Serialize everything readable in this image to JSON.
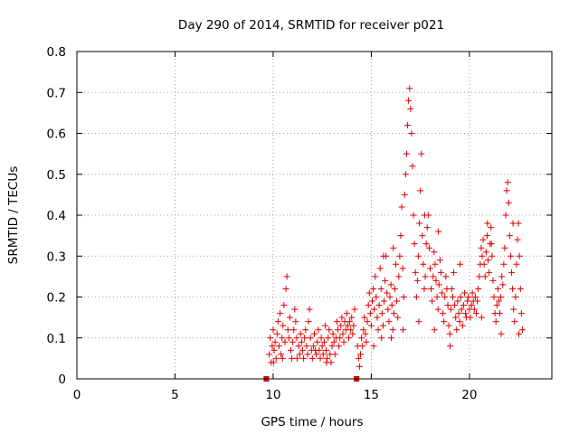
{
  "chart_data": {
    "type": "scatter",
    "title": "Day 290 of 2014, SRMTID for receiver p021",
    "xlabel": "GPS time / hours",
    "ylabel": "SRMTID / TECUs",
    "xlim": [
      0,
      24.2
    ],
    "ylim": [
      0,
      0.8
    ],
    "xticks": [
      0,
      5,
      10,
      15,
      20
    ],
    "xtick_labels": [
      "0",
      "5",
      "10",
      "15",
      "20"
    ],
    "yticks": [
      0,
      0.1,
      0.2,
      0.3,
      0.4,
      0.5,
      0.6,
      0.7,
      0.8
    ],
    "ytick_labels": [
      "0",
      "0.1",
      "0.2",
      "0.3",
      "0.4",
      "0.5",
      "0.6",
      "0.7",
      "0.8"
    ],
    "grid": true,
    "marker": "+",
    "color": "#e00000",
    "gap_markers": [
      {
        "x": 9.65,
        "y": 0
      },
      {
        "x": 14.25,
        "y": 0
      }
    ],
    "series": [
      {
        "name": "SRMTID",
        "points": [
          [
            9.8,
            0.06
          ],
          [
            9.85,
            0.1
          ],
          [
            9.9,
            0.04
          ],
          [
            9.95,
            0.08
          ],
          [
            10.0,
            0.12
          ],
          [
            10.05,
            0.07
          ],
          [
            10.1,
            0.09
          ],
          [
            10.15,
            0.05
          ],
          [
            10.2,
            0.11
          ],
          [
            10.25,
            0.14
          ],
          [
            10.3,
            0.08
          ],
          [
            10.35,
            0.16
          ],
          [
            10.4,
            0.06
          ],
          [
            10.45,
            0.1
          ],
          [
            10.5,
            0.13
          ],
          [
            10.55,
            0.18
          ],
          [
            10.6,
            0.09
          ],
          [
            10.65,
            0.22
          ],
          [
            10.7,
            0.25
          ],
          [
            10.75,
            0.12
          ],
          [
            10.8,
            0.1
          ],
          [
            10.85,
            0.15
          ],
          [
            10.9,
            0.07
          ],
          [
            10.95,
            0.05
          ],
          [
            11.0,
            0.09
          ],
          [
            11.05,
            0.12
          ],
          [
            11.1,
            0.17
          ],
          [
            11.15,
            0.14
          ],
          [
            11.2,
            0.1
          ],
          [
            11.3,
            0.08
          ],
          [
            11.35,
            0.06
          ],
          [
            11.4,
            0.11
          ],
          [
            11.45,
            0.09
          ],
          [
            11.5,
            0.07
          ],
          [
            11.55,
            0.05
          ],
          [
            11.6,
            0.1
          ],
          [
            11.65,
            0.12
          ],
          [
            11.7,
            0.08
          ],
          [
            11.75,
            0.06
          ],
          [
            11.8,
            0.14
          ],
          [
            11.85,
            0.17
          ],
          [
            11.9,
            0.1
          ],
          [
            11.95,
            0.07
          ],
          [
            12.0,
            0.05
          ],
          [
            12.05,
            0.08
          ],
          [
            12.1,
            0.11
          ],
          [
            12.15,
            0.07
          ],
          [
            12.2,
            0.06
          ],
          [
            12.25,
            0.09
          ],
          [
            12.3,
            0.12
          ],
          [
            12.35,
            0.07
          ],
          [
            12.4,
            0.05
          ],
          [
            12.45,
            0.1
          ],
          [
            12.5,
            0.08
          ],
          [
            12.55,
            0.06
          ],
          [
            12.6,
            0.09
          ],
          [
            12.65,
            0.13
          ],
          [
            12.7,
            0.07
          ],
          [
            12.75,
            0.05
          ],
          [
            12.8,
            0.1
          ],
          [
            12.85,
            0.12
          ],
          [
            12.9,
            0.06
          ],
          [
            12.95,
            0.04
          ],
          [
            13.0,
            0.08
          ],
          [
            13.05,
            0.11
          ],
          [
            13.1,
            0.09
          ],
          [
            13.15,
            0.06
          ],
          [
            13.2,
            0.1
          ],
          [
            13.25,
            0.14
          ],
          [
            13.3,
            0.12
          ],
          [
            13.35,
            0.08
          ],
          [
            13.4,
            0.1
          ],
          [
            13.45,
            0.13
          ],
          [
            13.5,
            0.15
          ],
          [
            13.55,
            0.11
          ],
          [
            13.6,
            0.09
          ],
          [
            13.65,
            0.14
          ],
          [
            13.7,
            0.12
          ],
          [
            13.75,
            0.16
          ],
          [
            13.8,
            0.13
          ],
          [
            13.85,
            0.1
          ],
          [
            13.9,
            0.14
          ],
          [
            13.95,
            0.12
          ],
          [
            14.0,
            0.15
          ],
          [
            14.05,
            0.11
          ],
          [
            14.1,
            0.13
          ],
          [
            14.15,
            0.17
          ],
          [
            14.3,
            0.08
          ],
          [
            14.35,
            0.05
          ],
          [
            14.4,
            0.03
          ],
          [
            14.45,
            0.06
          ],
          [
            14.5,
            0.1
          ],
          [
            14.55,
            0.08
          ],
          [
            14.6,
            0.12
          ],
          [
            14.65,
            0.15
          ],
          [
            14.7,
            0.11
          ],
          [
            14.75,
            0.09
          ],
          [
            14.8,
            0.14
          ],
          [
            14.85,
            0.18
          ],
          [
            14.9,
            0.21
          ],
          [
            14.95,
            0.16
          ],
          [
            15.0,
            0.13
          ],
          [
            15.05,
            0.19
          ],
          [
            15.1,
            0.22
          ],
          [
            15.15,
            0.17
          ],
          [
            15.2,
            0.25
          ],
          [
            15.25,
            0.2
          ],
          [
            15.3,
            0.15
          ],
          [
            15.35,
            0.12
          ],
          [
            15.4,
            0.18
          ],
          [
            15.45,
            0.27
          ],
          [
            15.5,
            0.22
          ],
          [
            15.55,
            0.16
          ],
          [
            15.6,
            0.13
          ],
          [
            15.65,
            0.19
          ],
          [
            15.7,
            0.24
          ],
          [
            15.75,
            0.3
          ],
          [
            15.8,
            0.21
          ],
          [
            15.85,
            0.17
          ],
          [
            15.9,
            0.14
          ],
          [
            15.95,
            0.2
          ],
          [
            16.0,
            0.23
          ],
          [
            16.05,
            0.18
          ],
          [
            16.1,
            0.12
          ],
          [
            16.15,
            0.16
          ],
          [
            16.2,
            0.22
          ],
          [
            16.25,
            0.28
          ],
          [
            16.3,
            0.19
          ],
          [
            16.35,
            0.15
          ],
          [
            16.4,
            0.25
          ],
          [
            16.45,
            0.3
          ],
          [
            16.5,
            0.35
          ],
          [
            16.55,
            0.42
          ],
          [
            16.6,
            0.27
          ],
          [
            16.65,
            0.2
          ],
          [
            16.7,
            0.45
          ],
          [
            16.75,
            0.5
          ],
          [
            16.8,
            0.55
          ],
          [
            16.85,
            0.62
          ],
          [
            16.9,
            0.68
          ],
          [
            16.95,
            0.71
          ],
          [
            17.0,
            0.66
          ],
          [
            17.05,
            0.6
          ],
          [
            17.1,
            0.52
          ],
          [
            17.15,
            0.4
          ],
          [
            17.2,
            0.33
          ],
          [
            17.25,
            0.26
          ],
          [
            17.3,
            0.2
          ],
          [
            17.35,
            0.24
          ],
          [
            17.4,
            0.3
          ],
          [
            17.45,
            0.38
          ],
          [
            17.5,
            0.46
          ],
          [
            17.55,
            0.55
          ],
          [
            17.6,
            0.35
          ],
          [
            17.65,
            0.28
          ],
          [
            17.7,
            0.22
          ],
          [
            17.75,
            0.25
          ],
          [
            17.8,
            0.33
          ],
          [
            17.85,
            0.37
          ],
          [
            17.9,
            0.4
          ],
          [
            17.95,
            0.32
          ],
          [
            18.0,
            0.27
          ],
          [
            18.05,
            0.22
          ],
          [
            18.1,
            0.19
          ],
          [
            18.15,
            0.25
          ],
          [
            18.2,
            0.31
          ],
          [
            18.25,
            0.28
          ],
          [
            18.3,
            0.24
          ],
          [
            18.35,
            0.2
          ],
          [
            18.4,
            0.17
          ],
          [
            18.45,
            0.23
          ],
          [
            18.5,
            0.29
          ],
          [
            18.55,
            0.26
          ],
          [
            18.6,
            0.21
          ],
          [
            18.65,
            0.16
          ],
          [
            18.7,
            0.14
          ],
          [
            18.75,
            0.2
          ],
          [
            18.8,
            0.25
          ],
          [
            18.85,
            0.22
          ],
          [
            18.9,
            0.18
          ],
          [
            18.95,
            0.13
          ],
          [
            19.0,
            0.11
          ],
          [
            19.05,
            0.17
          ],
          [
            19.1,
            0.22
          ],
          [
            19.15,
            0.2
          ],
          [
            19.2,
            0.26
          ],
          [
            19.25,
            0.18
          ],
          [
            19.3,
            0.15
          ],
          [
            19.35,
            0.12
          ],
          [
            19.4,
            0.19
          ],
          [
            19.45,
            0.16
          ],
          [
            19.5,
            0.14
          ],
          [
            19.55,
            0.2
          ],
          [
            19.6,
            0.17
          ],
          [
            19.65,
            0.13
          ],
          [
            19.7,
            0.18
          ],
          [
            19.75,
            0.21
          ],
          [
            19.8,
            0.16
          ],
          [
            19.85,
            0.15
          ],
          [
            19.9,
            0.19
          ],
          [
            19.95,
            0.2
          ],
          [
            20.0,
            0.17
          ],
          [
            20.05,
            0.15
          ],
          [
            20.1,
            0.18
          ],
          [
            20.15,
            0.21
          ],
          [
            20.2,
            0.19
          ],
          [
            20.25,
            0.17
          ],
          [
            20.3,
            0.2
          ],
          [
            20.35,
            0.16
          ],
          [
            20.4,
            0.19
          ],
          [
            20.45,
            0.22
          ],
          [
            20.5,
            0.25
          ],
          [
            20.55,
            0.28
          ],
          [
            20.6,
            0.32
          ],
          [
            20.65,
            0.3
          ],
          [
            20.7,
            0.34
          ],
          [
            20.75,
            0.28
          ],
          [
            20.8,
            0.25
          ],
          [
            20.85,
            0.31
          ],
          [
            20.9,
            0.35
          ],
          [
            20.95,
            0.29
          ],
          [
            21.0,
            0.26
          ],
          [
            21.05,
            0.33
          ],
          [
            21.1,
            0.37
          ],
          [
            21.15,
            0.3
          ],
          [
            21.2,
            0.24
          ],
          [
            21.25,
            0.2
          ],
          [
            21.3,
            0.16
          ],
          [
            21.35,
            0.14
          ],
          [
            21.4,
            0.18
          ],
          [
            21.45,
            0.22
          ],
          [
            21.5,
            0.19
          ],
          [
            21.55,
            0.16
          ],
          [
            21.6,
            0.2
          ],
          [
            21.65,
            0.25
          ],
          [
            21.7,
            0.23
          ],
          [
            21.75,
            0.28
          ],
          [
            21.8,
            0.32
          ],
          [
            21.85,
            0.4
          ],
          [
            21.9,
            0.46
          ],
          [
            21.95,
            0.48
          ],
          [
            22.0,
            0.43
          ],
          [
            22.05,
            0.35
          ],
          [
            22.1,
            0.3
          ],
          [
            22.15,
            0.26
          ],
          [
            22.2,
            0.22
          ],
          [
            22.25,
            0.17
          ],
          [
            22.3,
            0.14
          ],
          [
            22.35,
            0.2
          ],
          [
            22.4,
            0.28
          ],
          [
            22.45,
            0.34
          ],
          [
            22.5,
            0.38
          ],
          [
            22.55,
            0.3
          ],
          [
            22.6,
            0.22
          ],
          [
            22.65,
            0.16
          ],
          [
            22.7,
            0.12
          ],
          [
            10.02,
            0.04
          ],
          [
            10.48,
            0.05
          ],
          [
            11.22,
            0.05
          ],
          [
            12.72,
            0.04
          ],
          [
            15.12,
            0.08
          ],
          [
            15.52,
            0.1
          ],
          [
            16.02,
            0.1
          ],
          [
            16.62,
            0.12
          ],
          [
            17.42,
            0.14
          ],
          [
            18.22,
            0.12
          ],
          [
            19.02,
            0.08
          ],
          [
            20.62,
            0.15
          ],
          [
            21.62,
            0.11
          ],
          [
            22.52,
            0.11
          ],
          [
            15.62,
            0.3
          ],
          [
            16.12,
            0.32
          ],
          [
            17.72,
            0.4
          ],
          [
            18.42,
            0.36
          ],
          [
            19.52,
            0.28
          ],
          [
            20.92,
            0.38
          ],
          [
            21.12,
            0.33
          ],
          [
            22.22,
            0.38
          ]
        ]
      }
    ]
  }
}
